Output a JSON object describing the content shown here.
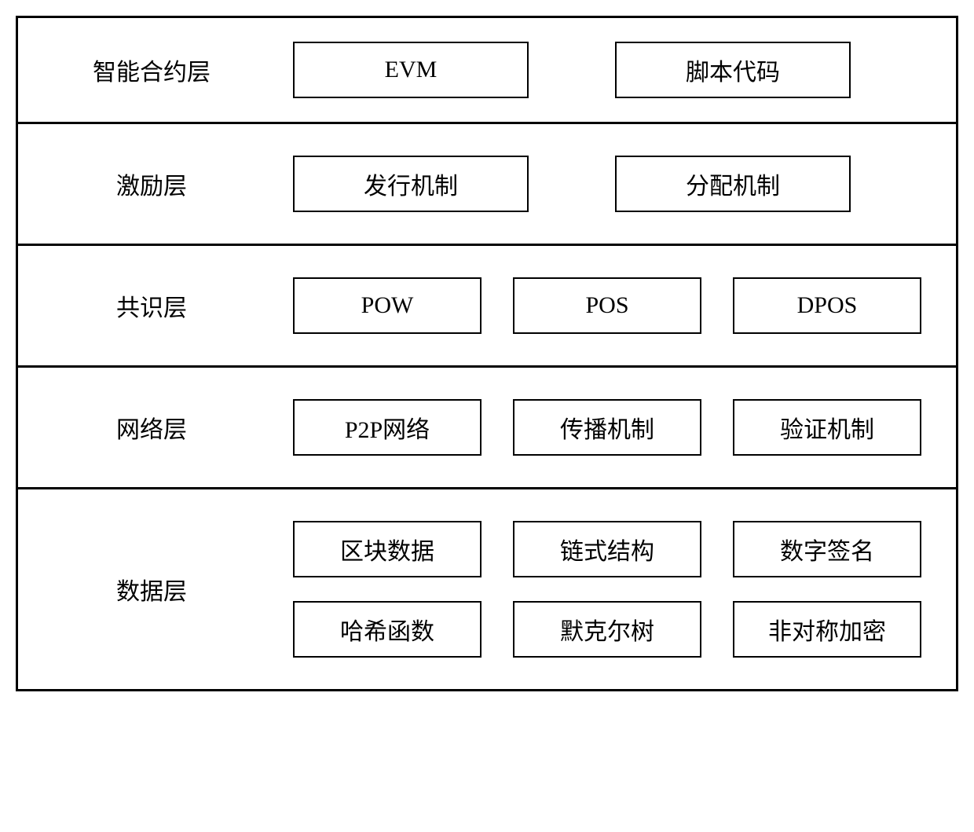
{
  "diagram": {
    "type": "layered-block-diagram",
    "border_color": "#000000",
    "border_width": 3,
    "box_border_width": 2,
    "background_color": "#ffffff",
    "text_color": "#000000",
    "label_fontsize": 30,
    "box_fontsize": 30,
    "font_family": "SimSun",
    "layers": [
      {
        "label": "智能合约层",
        "rows": [
          {
            "items": [
              "EVM",
              "脚本代码"
            ]
          }
        ]
      },
      {
        "label": "激励层",
        "rows": [
          {
            "items": [
              "发行机制",
              "分配机制"
            ]
          }
        ]
      },
      {
        "label": "共识层",
        "rows": [
          {
            "items": [
              "POW",
              "POS",
              "DPOS"
            ]
          }
        ]
      },
      {
        "label": "网络层",
        "rows": [
          {
            "items": [
              "P2P网络",
              "传播机制",
              "验证机制"
            ]
          }
        ]
      },
      {
        "label": "数据层",
        "rows": [
          {
            "items": [
              "区块数据",
              "链式结构",
              "数字签名"
            ]
          },
          {
            "items": [
              "哈希函数",
              "默克尔树",
              "非对称加密"
            ]
          }
        ]
      }
    ]
  }
}
